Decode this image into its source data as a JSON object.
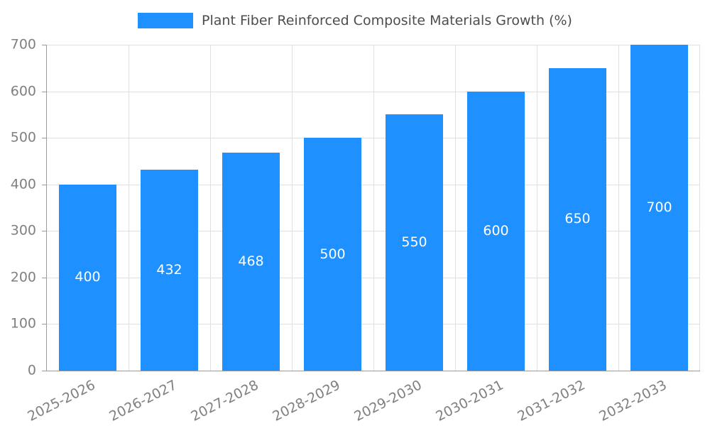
{
  "chart_data": {
    "type": "bar",
    "title": "Plant Fiber Reinforced Composite Materials Growth (%)",
    "categories": [
      "2025-2026",
      "2026-2027",
      "2027-2028",
      "2028-2029",
      "2029-2030",
      "2030-2031",
      "2031-2032",
      "2032-2033"
    ],
    "values": [
      400,
      432,
      468,
      500,
      550,
      600,
      650,
      700
    ],
    "xlabel": "",
    "ylabel": "",
    "ylim": [
      0,
      700
    ],
    "ytick_interval": 100,
    "grid": true,
    "legend_position": "top-center",
    "bar_value_labels": "inside-center"
  },
  "colors": {
    "bar": "#1E90FF",
    "bar_label": "#FFFFFF",
    "grid_line": "#E0E0E0",
    "axis_line": "#999999",
    "tick_text": "#808080",
    "title_text": "#4D4D4D"
  }
}
